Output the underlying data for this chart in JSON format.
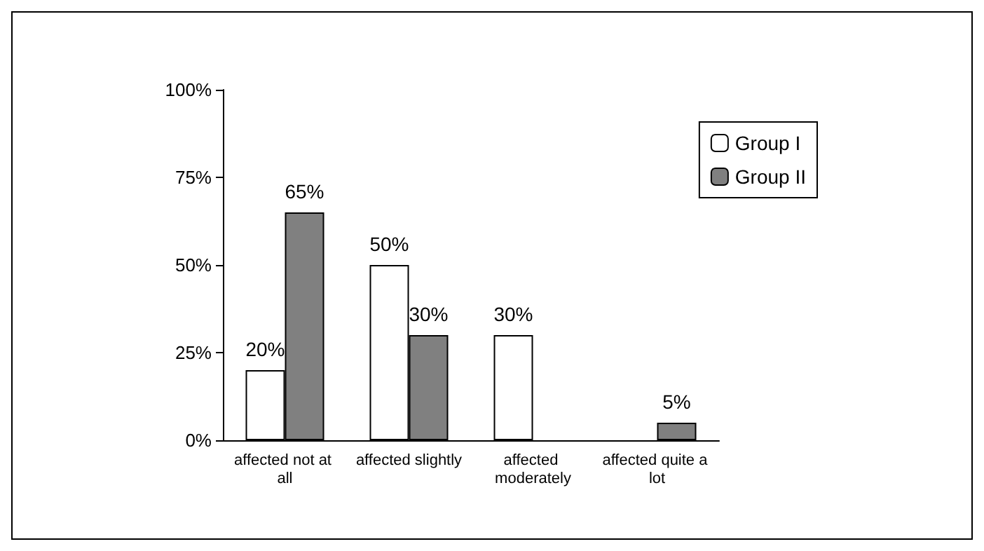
{
  "chart_data": {
    "type": "bar",
    "categories": [
      "affected not at all",
      "affected slightly",
      "affected moderately",
      "affected quite a lot"
    ],
    "series": [
      {
        "name": "Group I",
        "color": "#ffffff",
        "values": [
          20,
          50,
          30,
          null
        ],
        "value_labels": [
          "20%",
          "50%",
          "30%",
          null
        ]
      },
      {
        "name": "Group II",
        "color": "#808080",
        "values": [
          65,
          30,
          null,
          5
        ],
        "value_labels": [
          "65%",
          "30%",
          null,
          "5%"
        ]
      }
    ],
    "ylim": [
      0,
      100
    ],
    "yticks": [
      {
        "value": 0,
        "label": "0%"
      },
      {
        "value": 25,
        "label": "25%"
      },
      {
        "value": 50,
        "label": "50%"
      },
      {
        "value": 75,
        "label": "75%"
      },
      {
        "value": 100,
        "label": "100%"
      }
    ],
    "grid": false,
    "legend": "top right"
  }
}
